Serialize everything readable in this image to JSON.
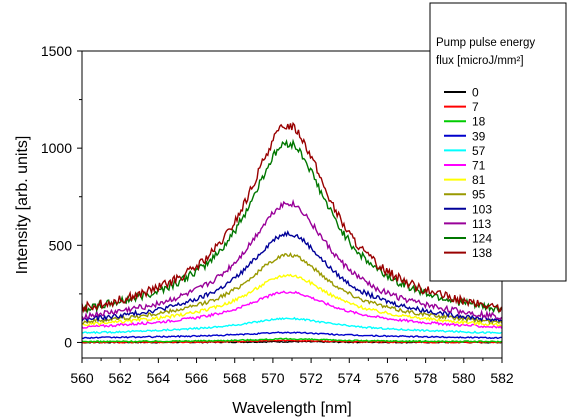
{
  "chart_data": {
    "type": "line",
    "xlabel": "Wavelength [nm]",
    "ylabel": "Intensity [arb. units]",
    "xlim": [
      560,
      582
    ],
    "ylim": [
      -80,
      1500
    ],
    "xticks": [
      "560",
      "562",
      "564",
      "566",
      "568",
      "570",
      "572",
      "574",
      "576",
      "578",
      "580",
      "582"
    ],
    "yticks": [
      "0",
      "500",
      "1000",
      "1500"
    ],
    "legend_title_line1": "Pump pulse energy",
    "legend_title_line2": "flux [microJ/mm²]",
    "legend_placement": "top-right",
    "grid": false,
    "series": [
      {
        "name": "0",
        "color": "#000000",
        "base": 0,
        "peak": 5
      },
      {
        "name": "7",
        "color": "#ff0000",
        "base": 0,
        "peak": 12
      },
      {
        "name": "18",
        "color": "#00cc00",
        "base": 5,
        "peak": 20
      },
      {
        "name": "39",
        "color": "#0000cc",
        "base": 30,
        "peak": 55
      },
      {
        "name": "57",
        "color": "#00ffff",
        "base": 60,
        "peak": 135
      },
      {
        "name": "71",
        "color": "#ff00ff",
        "base": 90,
        "peak": 290
      },
      {
        "name": "81",
        "color": "#ffff00",
        "base": 100,
        "peak": 390
      },
      {
        "name": "95",
        "color": "#999900",
        "base": 110,
        "peak": 510
      },
      {
        "name": "103",
        "color": "#000099",
        "base": 115,
        "peak": 640
      },
      {
        "name": "113",
        "color": "#990099",
        "base": 125,
        "peak": 820
      },
      {
        "name": "124",
        "color": "#007700",
        "base": 150,
        "peak": 1180
      },
      {
        "name": "138",
        "color": "#990000",
        "base": 150,
        "peak": 1290
      }
    ]
  }
}
